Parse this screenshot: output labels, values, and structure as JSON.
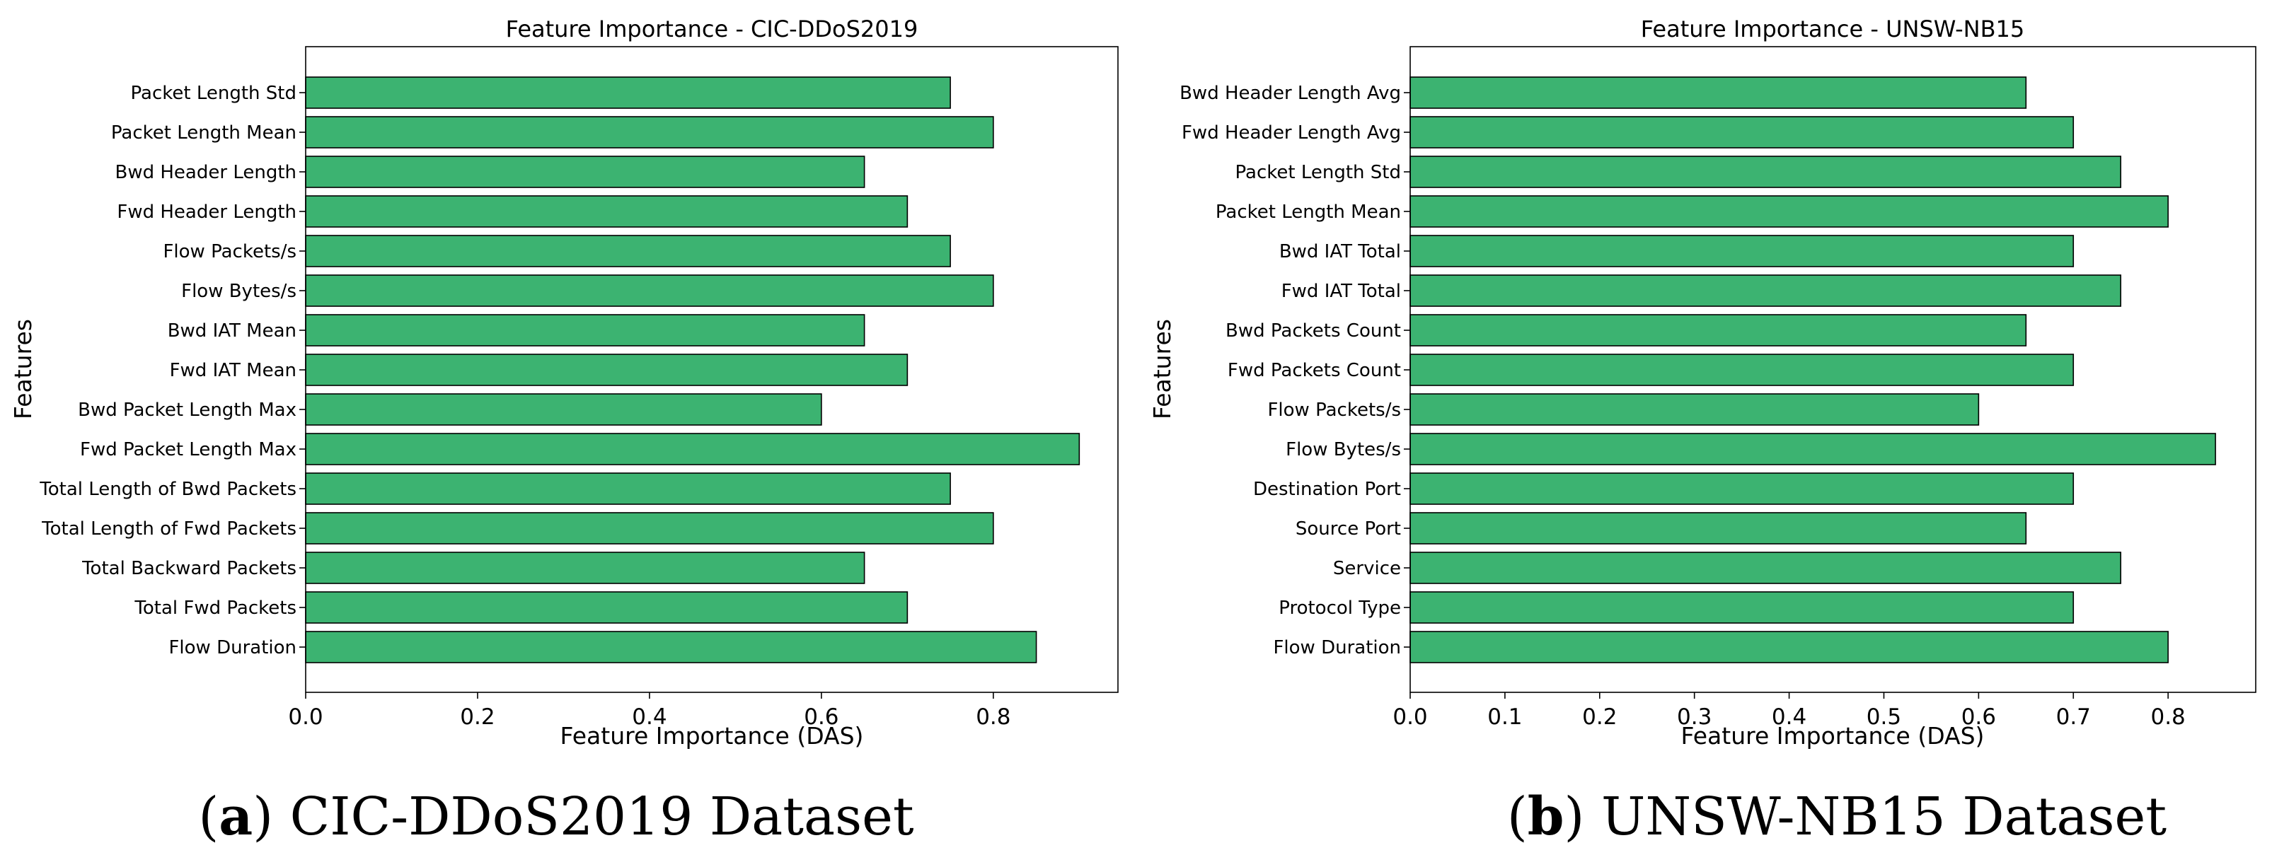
{
  "colors": {
    "bar_fill": "#3CB371",
    "bar_edge": "#000000",
    "axis": "#000000",
    "background": "#ffffff"
  },
  "chart_data": [
    {
      "type": "bar",
      "orientation": "horizontal",
      "title": "Feature Importance - CIC-DDoS2019",
      "xlabel": "Feature Importance (DAS)",
      "ylabel": "Features",
      "xlim": [
        0,
        0.945
      ],
      "xticks": [
        0,
        0.2,
        0.4,
        0.6,
        0.8
      ],
      "xtick_labels": [
        "0.0",
        "0.2",
        "0.4",
        "0.6",
        "0.8"
      ],
      "grid": false,
      "categories": [
        "Flow Duration",
        "Total Fwd Packets",
        "Total Backward Packets",
        "Total Length of Fwd Packets",
        "Total Length of Bwd Packets",
        "Fwd Packet Length Max",
        "Bwd Packet Length Max",
        "Fwd IAT Mean",
        "Bwd IAT Mean",
        "Flow Bytes/s",
        "Flow Packets/s",
        "Fwd Header Length",
        "Bwd Header Length",
        "Packet Length Mean",
        "Packet Length Std"
      ],
      "values": [
        0.85,
        0.7,
        0.65,
        0.8,
        0.75,
        0.9,
        0.6,
        0.7,
        0.65,
        0.8,
        0.75,
        0.7,
        0.65,
        0.8,
        0.75
      ],
      "caption_letter": "a",
      "caption_text": "CIC-DDoS2019 Dataset"
    },
    {
      "type": "bar",
      "orientation": "horizontal",
      "title": "Feature Importance - UNSW-NB15",
      "xlabel": "Feature Importance (DAS)",
      "ylabel": "Features",
      "xlim": [
        0,
        0.8925
      ],
      "xticks": [
        0,
        0.1,
        0.2,
        0.3,
        0.4,
        0.5,
        0.6,
        0.7,
        0.8
      ],
      "xtick_labels": [
        "0.0",
        "0.1",
        "0.2",
        "0.3",
        "0.4",
        "0.5",
        "0.6",
        "0.7",
        "0.8"
      ],
      "grid": false,
      "categories": [
        "Flow Duration",
        "Protocol Type",
        "Service",
        "Source Port",
        "Destination Port",
        "Flow Bytes/s",
        "Flow Packets/s",
        "Fwd Packets Count",
        "Bwd Packets Count",
        "Fwd IAT Total",
        "Bwd IAT Total",
        "Packet Length Mean",
        "Packet Length Std",
        "Fwd Header Length Avg",
        "Bwd Header Length Avg"
      ],
      "values": [
        0.8,
        0.7,
        0.75,
        0.65,
        0.7,
        0.85,
        0.6,
        0.7,
        0.65,
        0.75,
        0.7,
        0.8,
        0.75,
        0.7,
        0.65
      ],
      "caption_letter": "b",
      "caption_text": "UNSW-NB15 Dataset"
    }
  ]
}
